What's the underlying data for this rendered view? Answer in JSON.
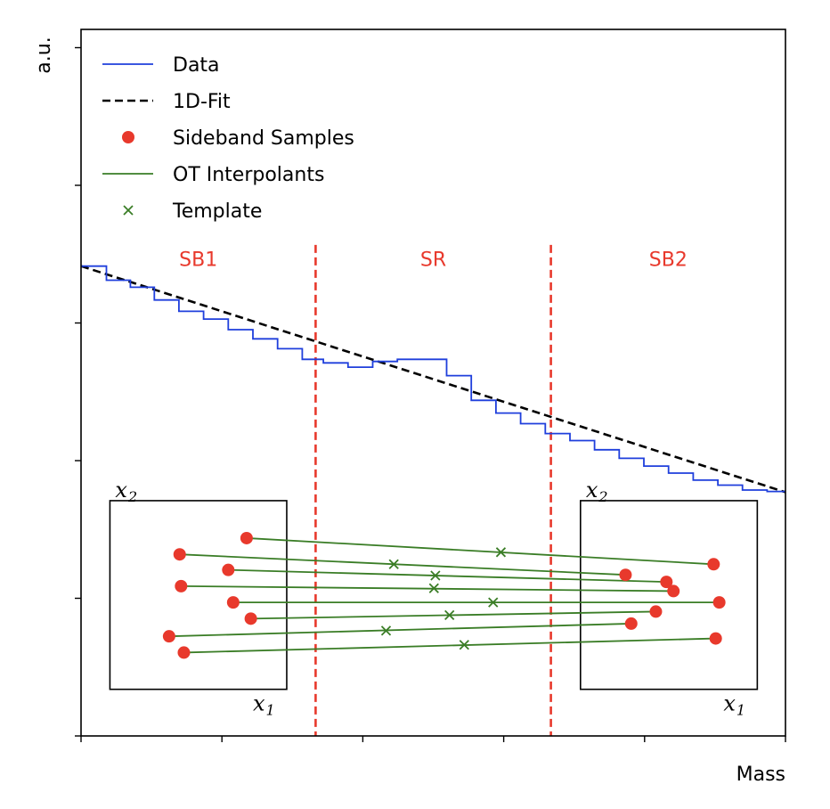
{
  "chart_data": {
    "type": "diagram",
    "xlabel": "Mass",
    "ylabel": "a.u.",
    "legend": {
      "placement": "top-left",
      "entries": [
        {
          "label": "Data",
          "style": "step-line",
          "color": "#1f3fdc"
        },
        {
          "label": "1D-Fit",
          "style": "dashed-line",
          "color": "#000000"
        },
        {
          "label": "Sideband Samples",
          "style": "dot",
          "color": "#e8392c"
        },
        {
          "label": "OT Interpolants",
          "style": "line",
          "color": "#3a7d26"
        },
        {
          "label": "Template",
          "style": "cross",
          "color": "#3a7d26"
        }
      ]
    },
    "regions": [
      {
        "label": "SB1",
        "color": "#e8392c"
      },
      {
        "label": "SR",
        "color": "#e8392c"
      },
      {
        "label": "SB2",
        "color": "#e8392c"
      }
    ],
    "x_range": [
      0,
      1
    ],
    "y_range": [
      0,
      1
    ],
    "boundaries": [
      0.333,
      0.667
    ],
    "fit_line": [
      [
        0,
        0.665
      ],
      [
        1,
        0.345
      ]
    ],
    "data_steps": [
      {
        "x0": 0.0,
        "x1": 0.036,
        "y": 0.665
      },
      {
        "x0": 0.036,
        "x1": 0.07,
        "y": 0.645
      },
      {
        "x0": 0.07,
        "x1": 0.104,
        "y": 0.635
      },
      {
        "x0": 0.104,
        "x1": 0.139,
        "y": 0.617
      },
      {
        "x0": 0.139,
        "x1": 0.174,
        "y": 0.601
      },
      {
        "x0": 0.174,
        "x1": 0.209,
        "y": 0.59
      },
      {
        "x0": 0.209,
        "x1": 0.244,
        "y": 0.575
      },
      {
        "x0": 0.244,
        "x1": 0.279,
        "y": 0.562
      },
      {
        "x0": 0.279,
        "x1": 0.314,
        "y": 0.548
      },
      {
        "x0": 0.314,
        "x1": 0.344,
        "y": 0.533
      },
      {
        "x0": 0.344,
        "x1": 0.379,
        "y": 0.528
      },
      {
        "x0": 0.379,
        "x1": 0.414,
        "y": 0.522
      },
      {
        "x0": 0.414,
        "x1": 0.449,
        "y": 0.53
      },
      {
        "x0": 0.449,
        "x1": 0.519,
        "y": 0.533
      },
      {
        "x0": 0.519,
        "x1": 0.554,
        "y": 0.51
      },
      {
        "x0": 0.554,
        "x1": 0.589,
        "y": 0.475
      },
      {
        "x0": 0.589,
        "x1": 0.624,
        "y": 0.457
      },
      {
        "x0": 0.624,
        "x1": 0.659,
        "y": 0.442
      },
      {
        "x0": 0.659,
        "x1": 0.694,
        "y": 0.428
      },
      {
        "x0": 0.694,
        "x1": 0.729,
        "y": 0.418
      },
      {
        "x0": 0.729,
        "x1": 0.764,
        "y": 0.405
      },
      {
        "x0": 0.764,
        "x1": 0.799,
        "y": 0.393
      },
      {
        "x0": 0.799,
        "x1": 0.834,
        "y": 0.382
      },
      {
        "x0": 0.834,
        "x1": 0.869,
        "y": 0.372
      },
      {
        "x0": 0.869,
        "x1": 0.904,
        "y": 0.362
      },
      {
        "x0": 0.904,
        "x1": 0.939,
        "y": 0.355
      },
      {
        "x0": 0.939,
        "x1": 0.974,
        "y": 0.348
      },
      {
        "x0": 0.974,
        "x1": 1.0,
        "y": 0.346
      }
    ],
    "insets": [
      {
        "x0": 0.041,
        "x1": 0.292,
        "y0": 0.066,
        "y1": 0.333,
        "xlabel": "x",
        "xsub": "1",
        "ylabel": "x",
        "ysub": "2"
      },
      {
        "x0": 0.709,
        "x1": 0.96,
        "y0": 0.066,
        "y1": 0.333,
        "xlabel": "x",
        "xsub": "1",
        "ylabel": "x",
        "ysub": "2"
      }
    ],
    "ot_pairs": [
      {
        "a": [
          0.235,
          0.28
        ],
        "b": [
          0.898,
          0.243
        ],
        "t": [
          0.596,
          0.26
        ]
      },
      {
        "a": [
          0.14,
          0.257
        ],
        "b": [
          0.773,
          0.228
        ],
        "t": [
          0.444,
          0.243
        ]
      },
      {
        "a": [
          0.209,
          0.235
        ],
        "b": [
          0.831,
          0.218
        ],
        "t": [
          0.503,
          0.227
        ]
      },
      {
        "a": [
          0.142,
          0.212
        ],
        "b": [
          0.841,
          0.205
        ],
        "t": [
          0.501,
          0.209
        ]
      },
      {
        "a": [
          0.216,
          0.189
        ],
        "b": [
          0.906,
          0.189
        ],
        "t": [
          0.585,
          0.189
        ]
      },
      {
        "a": [
          0.241,
          0.166
        ],
        "b": [
          0.816,
          0.176
        ],
        "t": [
          0.523,
          0.171
        ]
      },
      {
        "a": [
          0.125,
          0.141
        ],
        "b": [
          0.781,
          0.159
        ],
        "t": [
          0.433,
          0.149
        ]
      },
      {
        "a": [
          0.146,
          0.118
        ],
        "b": [
          0.901,
          0.138
        ],
        "t": [
          0.544,
          0.129
        ]
      }
    ]
  }
}
